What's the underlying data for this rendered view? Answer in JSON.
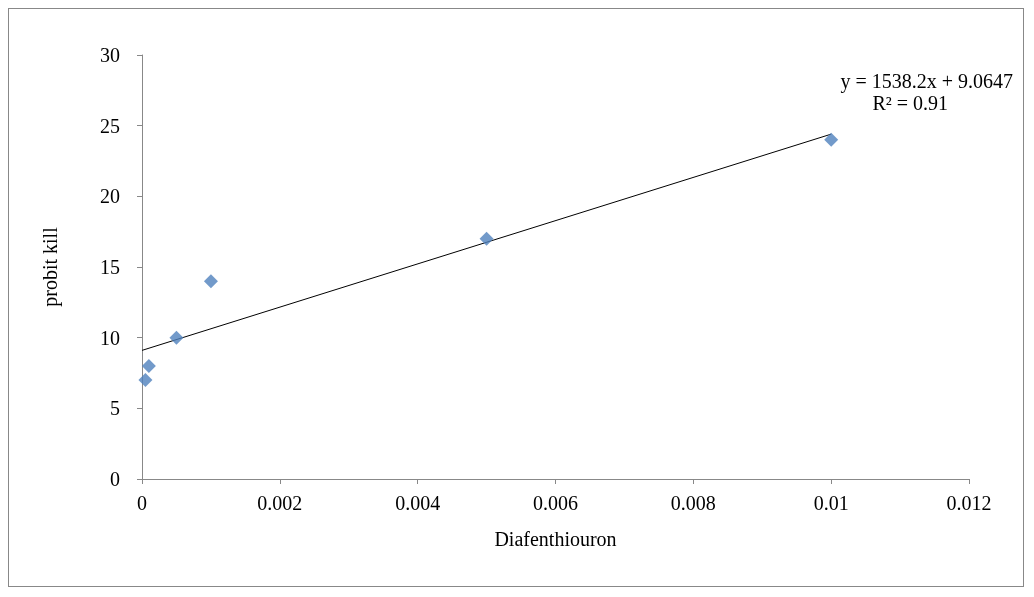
{
  "chart_data": {
    "type": "scatter",
    "xlabel": "Diafenthiouron",
    "ylabel": "probit kill",
    "series": [
      {
        "color": "#4f81bd",
        "marker": "diamond",
        "x": [
          5e-05,
          0.0001,
          0.0005,
          0.001,
          0.005,
          0.01
        ],
        "values": [
          7,
          8,
          10,
          14,
          17,
          24
        ]
      },
      {
        "type": "line",
        "color": "#000000",
        "marker": "none",
        "line_style": "solid",
        "x": [
          0,
          0.01
        ],
        "values": [
          9.1,
          24.4
        ]
      }
    ],
    "annotations": [
      "y = 1538.2x + 9.0647",
      "R² = 0.91"
    ],
    "xlim": [
      0,
      0.012
    ],
    "xticks": [
      0,
      0.002,
      0.004,
      0.006,
      0.008,
      0.01,
      0.012
    ],
    "ylim": [
      0,
      30
    ],
    "yticks": [
      0,
      5,
      10,
      15,
      20,
      25,
      30
    ],
    "grid": false
  }
}
